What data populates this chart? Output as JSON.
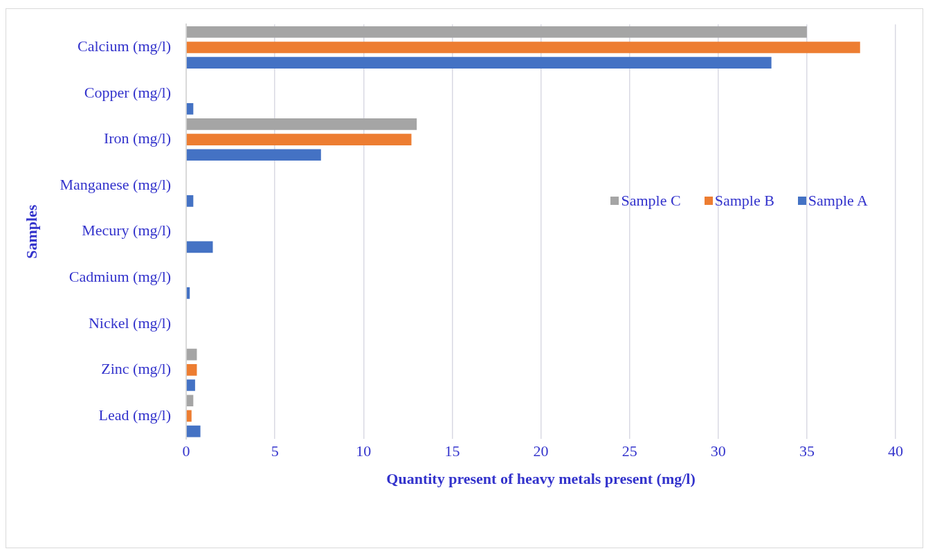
{
  "chart_data": {
    "type": "bar",
    "orientation": "horizontal",
    "xlabel": "Quantity present of heavy metals present (mg/l)",
    "ylabel": "Samples",
    "categories": [
      "Calcium (mg/l)",
      "Copper (mg/l)",
      "Iron (mg/l)",
      "Manganese (mg/l)",
      "Mecury (mg/l)",
      "Cadmium (mg/l)",
      "Nickel (mg/l)",
      "Zinc (mg/l)",
      "Lead (mg/l)"
    ],
    "series": [
      {
        "name": "Sample C",
        "color": "#a5a5a5",
        "values": [
          35,
          0,
          13,
          0,
          0,
          0,
          0,
          0.6,
          0.4
        ]
      },
      {
        "name": "Sample B",
        "color": "#ed7d31",
        "values": [
          38,
          0,
          12.7,
          0,
          0,
          0,
          0,
          0.6,
          0.3
        ]
      },
      {
        "name": "Sample A",
        "color": "#4472c4",
        "values": [
          33,
          0.4,
          7.6,
          0.4,
          1.5,
          0.2,
          0,
          0.5,
          0.8
        ]
      }
    ],
    "xlim": [
      0,
      40
    ],
    "xticks": [
      0,
      5,
      10,
      15,
      20,
      25,
      30,
      35,
      40
    ],
    "grid": "x",
    "legend": "right"
  }
}
